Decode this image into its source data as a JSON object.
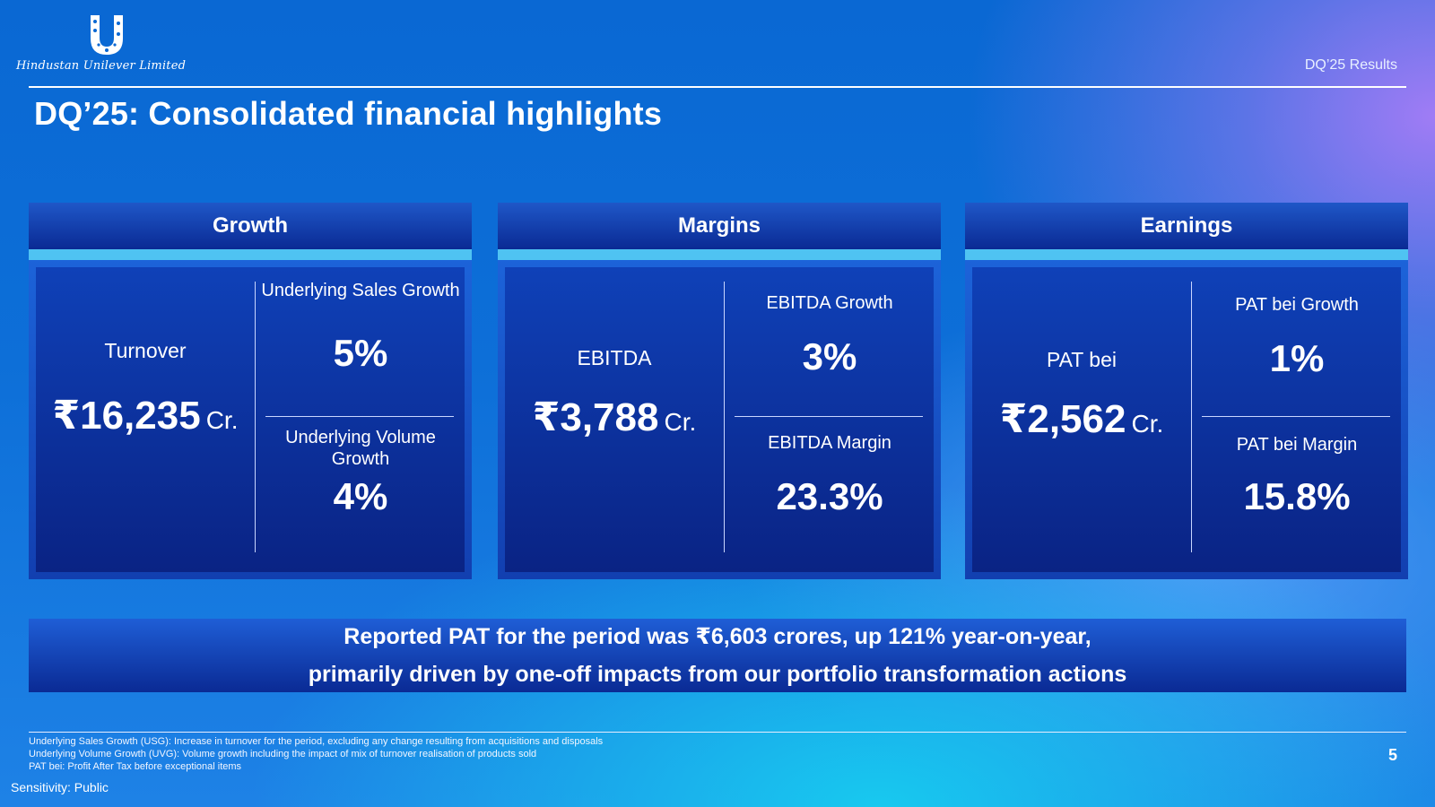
{
  "header": {
    "company": "Hindustan Unilever Limited",
    "report_label": "DQ’25 Results",
    "title": "DQ’25: Consolidated financial highlights"
  },
  "colors": {
    "accent_strip": "#4fc3f2",
    "panel_dark": "#0a2384"
  },
  "panels": [
    {
      "title": "Growth",
      "main_label": "Turnover",
      "main_value": "₹16,235",
      "main_unit": "Cr.",
      "top_label": "Underlying Sales Growth",
      "top_value": "5%",
      "bottom_label": "Underlying Volume Growth",
      "bottom_value": "4%"
    },
    {
      "title": "Margins",
      "main_label": "EBITDA",
      "main_value": "₹3,788",
      "main_unit": "Cr.",
      "top_label": "EBITDA Growth",
      "top_value": "3%",
      "bottom_label": "EBITDA Margin",
      "bottom_value": "23.3%"
    },
    {
      "title": "Earnings",
      "main_label": "PAT bei",
      "main_value": "₹2,562",
      "main_unit": "Cr.",
      "top_label": "PAT bei Growth",
      "top_value": "1%",
      "bottom_label": "PAT bei Margin",
      "bottom_value": "15.8%"
    }
  ],
  "banner": {
    "line1": "Reported PAT for the period was ₹6,603 crores, up 121% year-on-year,",
    "line2": "primarily driven by one-off impacts from our portfolio transformation actions"
  },
  "footnotes": [
    "Underlying Sales Growth (USG): Increase in turnover for the period, excluding any change resulting from acquisitions and disposals",
    "Underlying Volume Growth (UVG): Volume growth including the impact of mix of turnover realisation of products sold",
    "PAT bei: Profit After Tax before exceptional items"
  ],
  "page_number": "5",
  "sensitivity": "Sensitivity: Public"
}
